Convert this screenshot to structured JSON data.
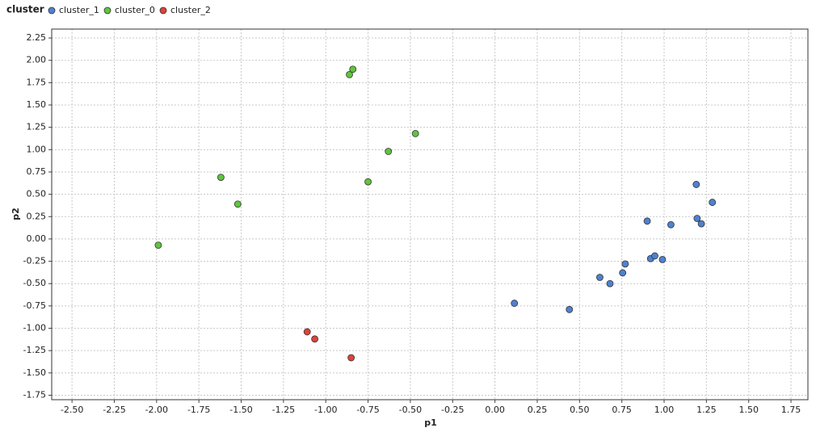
{
  "chart_data": {
    "type": "scatter",
    "legend_title": "cluster",
    "x_label": "p1",
    "y_label": "p2",
    "xlim": [
      -2.62,
      1.85
    ],
    "ylim": [
      -1.8,
      2.35
    ],
    "xticks": [
      {
        "value": -2.5,
        "label": "-2.50"
      },
      -2.25,
      {
        "value": -2,
        "label": "-2.00"
      },
      -1.75,
      {
        "value": -1.5,
        "label": "-1.50"
      },
      -1.25,
      {
        "value": -1,
        "label": "-1.00"
      },
      -0.75,
      {
        "value": -0.5,
        "label": "-0.50"
      },
      -0.25,
      {
        "value": 0,
        "label": "0.00"
      },
      0.25,
      {
        "value": 0.5,
        "label": "0.50"
      },
      0.75,
      {
        "value": 1,
        "label": "1.00"
      },
      1.25,
      {
        "value": 1.5,
        "label": "1.50"
      },
      1.75
    ],
    "yticks": [
      -1.75,
      {
        "value": -1.5,
        "label": "-1.50"
      },
      -1.25,
      {
        "value": -1,
        "label": "-1.00"
      },
      -0.75,
      {
        "value": -0.5,
        "label": "-0.50"
      },
      -0.25,
      {
        "value": 0,
        "label": "0.00"
      },
      0.25,
      {
        "value": 0.5,
        "label": "0.50"
      },
      0.75,
      {
        "value": 1,
        "label": "1.00"
      },
      1.25,
      {
        "value": 1.5,
        "label": "1.50"
      },
      1.75,
      {
        "value": 2,
        "label": "2.00"
      },
      2.25
    ],
    "grid": true,
    "series": [
      {
        "name": "cluster_1",
        "color": "#4f81d1",
        "x": [
          0.115,
          0.44,
          0.62,
          0.68,
          0.755,
          0.77,
          0.9,
          0.92,
          0.945,
          0.99,
          1.04,
          1.19,
          1.195,
          1.22,
          1.285
        ],
        "values": [
          -0.72,
          -0.79,
          -0.43,
          -0.5,
          -0.38,
          -0.28,
          0.2,
          -0.22,
          -0.19,
          -0.23,
          0.16,
          0.61,
          0.23,
          0.17,
          0.41
        ]
      },
      {
        "name": "cluster_0",
        "color": "#5fc43c",
        "x": [
          -1.99,
          -1.62,
          -1.52,
          -0.86,
          -0.84,
          -0.75,
          -0.63,
          -0.47
        ],
        "values": [
          -0.07,
          0.69,
          0.39,
          1.84,
          1.9,
          0.64,
          0.98,
          1.18
        ]
      },
      {
        "name": "cluster_2",
        "color": "#e0413a",
        "x": [
          -1.11,
          -1.065,
          -0.85
        ],
        "values": [
          -1.04,
          -1.12,
          -1.33
        ]
      }
    ]
  }
}
